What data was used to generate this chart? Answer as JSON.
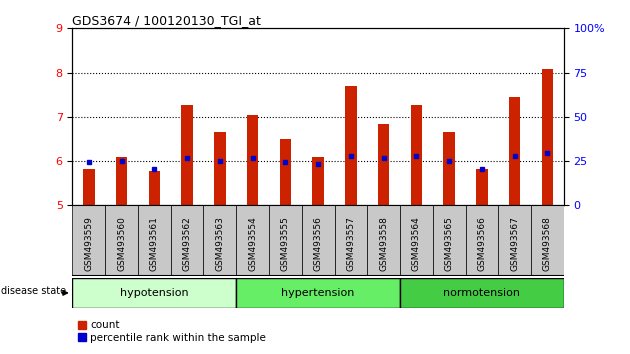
{
  "title": "GDS3674 / 100120130_TGI_at",
  "samples": [
    "GSM493559",
    "GSM493560",
    "GSM493561",
    "GSM493562",
    "GSM493563",
    "GSM493554",
    "GSM493555",
    "GSM493556",
    "GSM493557",
    "GSM493558",
    "GSM493564",
    "GSM493565",
    "GSM493566",
    "GSM493567",
    "GSM493568"
  ],
  "count_values": [
    5.82,
    6.1,
    5.78,
    7.27,
    6.65,
    7.05,
    6.5,
    6.1,
    7.7,
    6.83,
    7.27,
    6.65,
    5.82,
    7.45,
    8.07
  ],
  "percentile_values": [
    5.97,
    6.0,
    5.83,
    6.08,
    6.0,
    6.08,
    5.97,
    5.93,
    6.12,
    6.08,
    6.12,
    6.0,
    5.83,
    6.12,
    6.18
  ],
  "groups": [
    {
      "label": "hypotension",
      "indices": [
        0,
        1,
        2,
        3,
        4
      ],
      "color": "#ccffcc"
    },
    {
      "label": "hypertension",
      "indices": [
        5,
        6,
        7,
        8,
        9
      ],
      "color": "#66ee66"
    },
    {
      "label": "normotension",
      "indices": [
        10,
        11,
        12,
        13,
        14
      ],
      "color": "#44cc44"
    }
  ],
  "ymin": 5,
  "ymax": 9,
  "yticks_left": [
    5,
    6,
    7,
    8,
    9
  ],
  "yticks_right": [
    0,
    25,
    50,
    75,
    100
  ],
  "bar_color": "#cc2200",
  "percentile_color": "#0000cc",
  "bar_width": 0.35,
  "disease_state_label": "disease state"
}
